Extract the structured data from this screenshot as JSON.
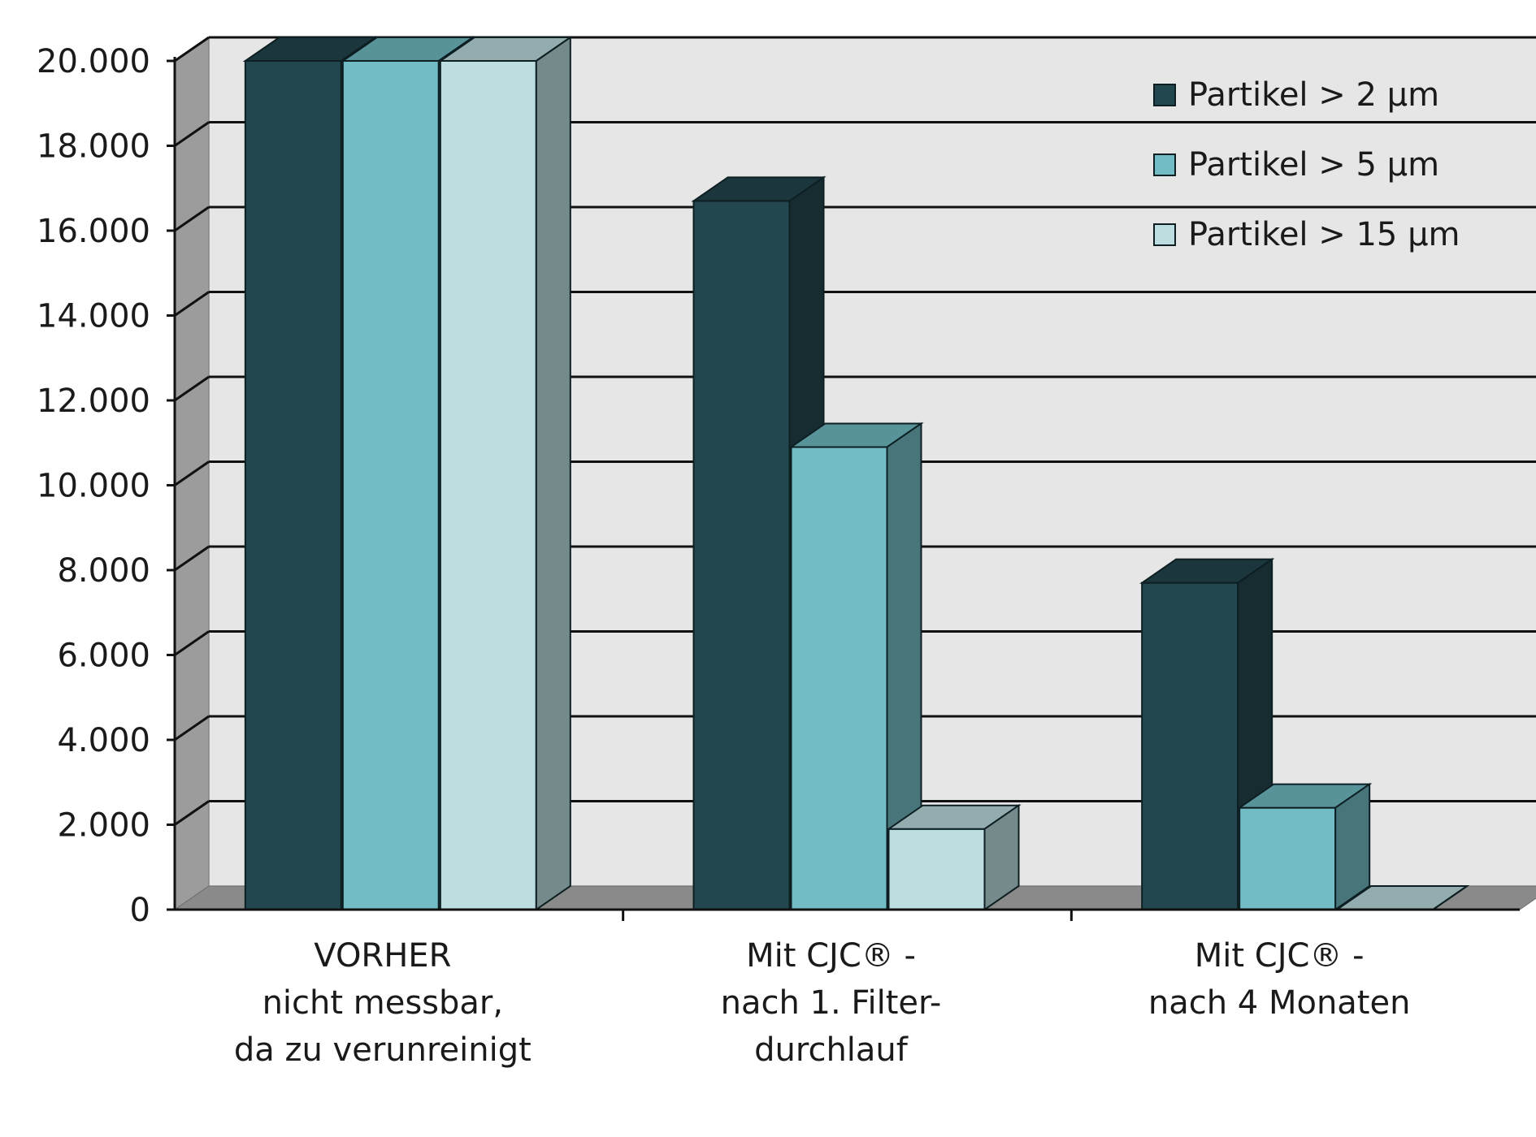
{
  "chart_data": {
    "type": "bar",
    "style": "3d-clustered-column",
    "categories": [
      [
        "VORHER",
        "nicht messbar,",
        "da zu verunreinigt"
      ],
      [
        "Mit CJC® -",
        "nach 1. Filter-",
        "durchlauf"
      ],
      [
        "Mit CJC® -",
        "nach 4 Monaten"
      ]
    ],
    "series": [
      {
        "name": "Partikel > 2 µm",
        "color": "#23474e",
        "values": [
          20000,
          16700,
          7700
        ]
      },
      {
        "name": "Partikel > 5 µm",
        "color": "#72bcc5",
        "values": [
          20000,
          10900,
          2400
        ]
      },
      {
        "name": "Partikel > 15 µm",
        "color": "#bcdee0",
        "values": [
          20000,
          1900,
          0
        ]
      }
    ],
    "yticks": [
      "0",
      "2.000",
      "4.000",
      "6.000",
      "8.000",
      "10.000",
      "12.000",
      "14.000",
      "16.000",
      "18.000",
      "20.000"
    ],
    "ylim": [
      0,
      20000
    ],
    "grid": true,
    "legend": "top-right",
    "title": "",
    "xlabel": "",
    "ylabel": ""
  }
}
